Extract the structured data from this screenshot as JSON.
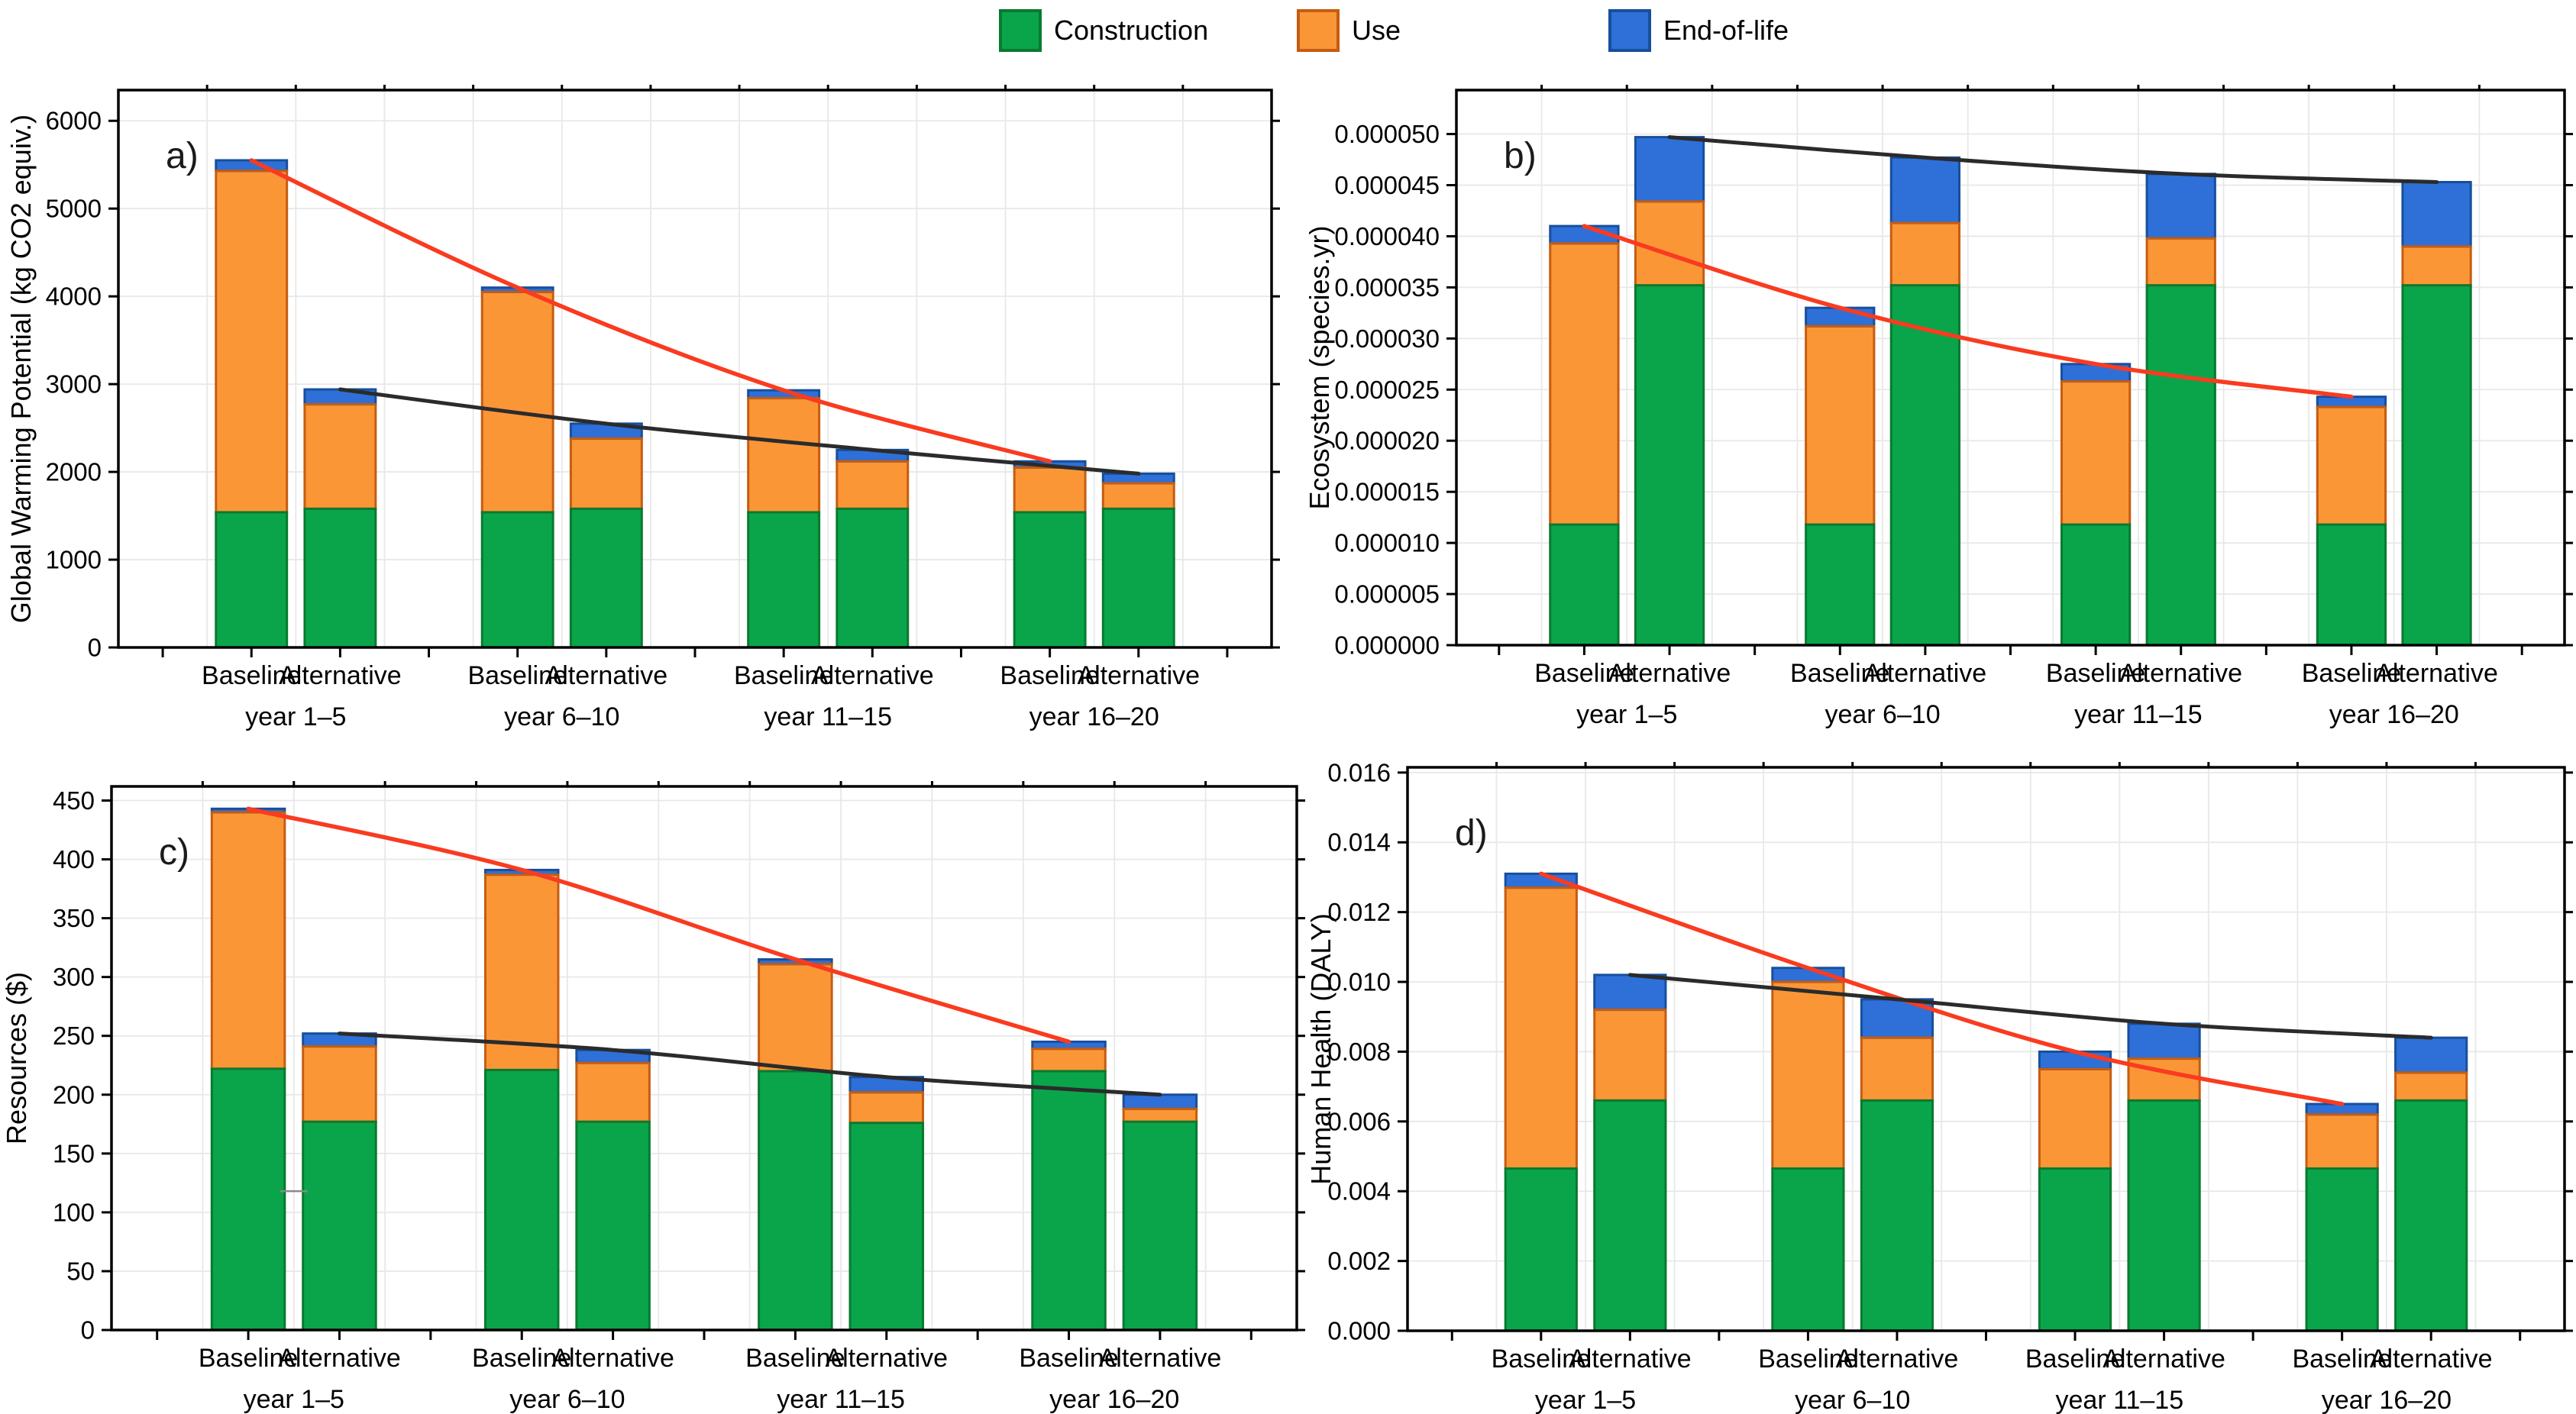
{
  "legend": {
    "items": [
      {
        "label": "Construction",
        "fill": "#0aa54b",
        "stroke": "#087a30"
      },
      {
        "label": "Use",
        "fill": "#fb9637",
        "stroke": "#c65c10"
      },
      {
        "label": "End-of-life",
        "fill": "#2e70d8",
        "stroke": "#174f9c"
      }
    ]
  },
  "colors": {
    "baseline_line": "#f93b20",
    "alternative_line": "#2b2b2b",
    "grid": "#e8e8e8",
    "axis": "#000000",
    "text": "#000000",
    "stray_mark": "#8a8a8a"
  },
  "chart_data": [
    {
      "id": "a",
      "type": "bar",
      "panel_label": "a)",
      "ylabel": "Global Warming Potential (kg CO2 equiv.)",
      "ylim": [
        0,
        6350
      ],
      "ytick_step": 1000,
      "ytick_decimals": 0,
      "groups": [
        "year 1–5",
        "year 6–10",
        "year 11–15",
        "year 16–20"
      ],
      "bar_labels": [
        "Baseline",
        "Alternative"
      ],
      "series_order": [
        "construction",
        "use",
        "end_of_life"
      ],
      "baseline": [
        {
          "construction": 1540,
          "use": 3890,
          "end_of_life": 120
        },
        {
          "construction": 1540,
          "use": 2510,
          "end_of_life": 50
        },
        {
          "construction": 1540,
          "use": 1300,
          "end_of_life": 90
        },
        {
          "construction": 1540,
          "use": 510,
          "end_of_life": 70
        }
      ],
      "alternative": [
        {
          "construction": 1580,
          "use": 1190,
          "end_of_life": 170
        },
        {
          "construction": 1580,
          "use": 800,
          "end_of_life": 170
        },
        {
          "construction": 1580,
          "use": 540,
          "end_of_life": 130
        },
        {
          "construction": 1580,
          "use": 290,
          "end_of_life": 110
        }
      ]
    },
    {
      "id": "b",
      "type": "bar",
      "panel_label": "b)",
      "ylabel": "Ecosystem (species.yr)",
      "ylim": [
        0,
        5.43e-05
      ],
      "ytick_step": 5e-06,
      "ytick_decimals": 6,
      "groups": [
        "year 1–5",
        "year 6–10",
        "year 11–15",
        "year 16–20"
      ],
      "bar_labels": [
        "Baseline",
        "Alternative"
      ],
      "series_order": [
        "construction",
        "use",
        "end_of_life"
      ],
      "baseline": [
        {
          "construction": 1.18e-05,
          "use": 2.75e-05,
          "end_of_life": 1.7e-06
        },
        {
          "construction": 1.18e-05,
          "use": 1.94e-05,
          "end_of_life": 1.8e-06
        },
        {
          "construction": 1.18e-05,
          "use": 1.4e-05,
          "end_of_life": 1.7e-06
        },
        {
          "construction": 1.18e-05,
          "use": 1.15e-05,
          "end_of_life": 1e-06
        }
      ],
      "alternative": [
        {
          "construction": 3.52e-05,
          "use": 8.2e-06,
          "end_of_life": 6.3e-06
        },
        {
          "construction": 3.52e-05,
          "use": 6.1e-06,
          "end_of_life": 6.4e-06
        },
        {
          "construction": 3.52e-05,
          "use": 4.6e-06,
          "end_of_life": 6.3e-06
        },
        {
          "construction": 3.52e-05,
          "use": 3.8e-06,
          "end_of_life": 6.3e-06
        }
      ]
    },
    {
      "id": "c",
      "type": "bar",
      "panel_label": "c)",
      "ylabel": "Resources ($)",
      "ylim": [
        0,
        462
      ],
      "ytick_step": 50,
      "ytick_decimals": 0,
      "groups": [
        "year 1–5",
        "year 6–10",
        "year 11–15",
        "year 16–20"
      ],
      "bar_labels": [
        "Baseline",
        "Alternative"
      ],
      "series_order": [
        "construction",
        "use",
        "end_of_life"
      ],
      "baseline": [
        {
          "construction": 222,
          "use": 218,
          "end_of_life": 3
        },
        {
          "construction": 221,
          "use": 166,
          "end_of_life": 4
        },
        {
          "construction": 220,
          "use": 91,
          "end_of_life": 4
        },
        {
          "construction": 220,
          "use": 19,
          "end_of_life": 6
        }
      ],
      "alternative": [
        {
          "construction": 177,
          "use": 64,
          "end_of_life": 11
        },
        {
          "construction": 177,
          "use": 50,
          "end_of_life": 11
        },
        {
          "construction": 176,
          "use": 26,
          "end_of_life": 13
        },
        {
          "construction": 177,
          "use": 11,
          "end_of_life": 12
        }
      ],
      "stray_mark": {
        "value": 118,
        "group_index": 0,
        "position": "between-bars"
      }
    },
    {
      "id": "d",
      "type": "bar",
      "panel_label": "d)",
      "ylabel": "Human Health (DALY)",
      "ylim": [
        0,
        0.01615
      ],
      "ytick_step": 0.002,
      "ytick_decimals": 3,
      "groups": [
        "year 1–5",
        "year 6–10",
        "year 11–15",
        "year 16–20"
      ],
      "bar_labels": [
        "Baseline",
        "Alternative"
      ],
      "series_order": [
        "construction",
        "use",
        "end_of_life"
      ],
      "baseline": [
        {
          "construction": 0.00465,
          "use": 0.00805,
          "end_of_life": 0.0004
        },
        {
          "construction": 0.00465,
          "use": 0.00535,
          "end_of_life": 0.0004
        },
        {
          "construction": 0.00465,
          "use": 0.00285,
          "end_of_life": 0.0005
        },
        {
          "construction": 0.00465,
          "use": 0.00155,
          "end_of_life": 0.0003
        }
      ],
      "alternative": [
        {
          "construction": 0.0066,
          "use": 0.0026,
          "end_of_life": 0.001
        },
        {
          "construction": 0.0066,
          "use": 0.0018,
          "end_of_life": 0.0011
        },
        {
          "construction": 0.0066,
          "use": 0.0012,
          "end_of_life": 0.001
        },
        {
          "construction": 0.0066,
          "use": 0.0008,
          "end_of_life": 0.001
        }
      ]
    }
  ]
}
